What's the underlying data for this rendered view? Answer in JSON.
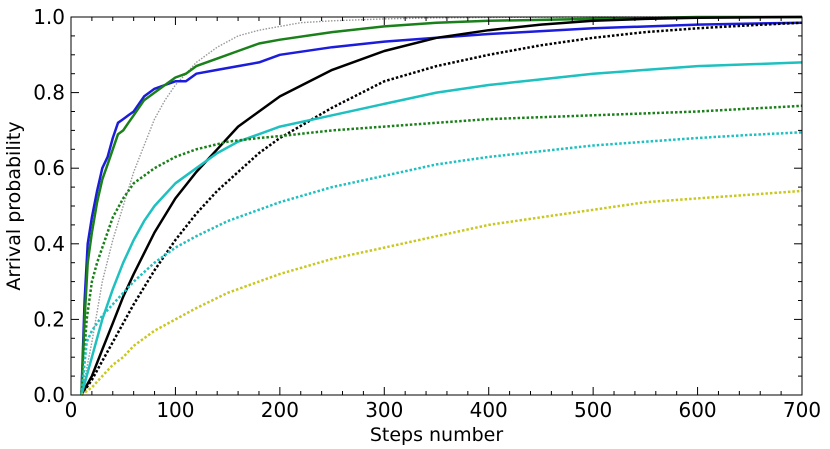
{
  "chart_data": {
    "type": "line",
    "title": "",
    "xlabel": "Steps number",
    "ylabel": "Arrival probability",
    "xlim": [
      0,
      700
    ],
    "ylim": [
      0,
      1
    ],
    "xticks": [
      0,
      100,
      200,
      300,
      400,
      500,
      600,
      700
    ],
    "xtick_labels": [
      "0",
      "100",
      "200",
      "300",
      "400",
      "500",
      "600",
      "700"
    ],
    "yticks": [
      0,
      0.2,
      0.4,
      0.6,
      0.8,
      1.0
    ],
    "ytick_labels": [
      "0.0",
      "0.2",
      "0.4",
      "0.6",
      "0.8",
      "1.0"
    ],
    "grid": false,
    "legend": "none",
    "series": [
      {
        "color": "#999999",
        "style": "dotted",
        "width": 1.4,
        "x": [
          10,
          20,
          30,
          40,
          50,
          60,
          70,
          80,
          90,
          100,
          110,
          120,
          140,
          160,
          180,
          200,
          220,
          250,
          300,
          350,
          400,
          500,
          600,
          700
        ],
        "y": [
          0,
          0.14,
          0.3,
          0.41,
          0.5,
          0.59,
          0.66,
          0.73,
          0.78,
          0.82,
          0.85,
          0.88,
          0.92,
          0.95,
          0.965,
          0.975,
          0.985,
          0.99,
          0.995,
          0.998,
          0.999,
          1.0,
          1.0,
          1.0
        ]
      },
      {
        "color": "#1c1cdc",
        "style": "solid",
        "width": 2.5,
        "x": [
          10,
          13,
          16,
          20,
          25,
          30,
          35,
          40,
          45,
          50,
          55,
          60,
          65,
          70,
          80,
          90,
          100,
          110,
          120,
          140,
          160,
          180,
          200,
          250,
          300,
          350,
          400,
          500,
          600,
          700
        ],
        "y": [
          0,
          0.25,
          0.4,
          0.47,
          0.54,
          0.6,
          0.63,
          0.68,
          0.72,
          0.73,
          0.74,
          0.75,
          0.77,
          0.79,
          0.81,
          0.82,
          0.83,
          0.83,
          0.85,
          0.86,
          0.87,
          0.88,
          0.9,
          0.92,
          0.935,
          0.945,
          0.955,
          0.97,
          0.98,
          0.985
        ]
      },
      {
        "color": "#1a801a",
        "style": "solid",
        "width": 2.5,
        "x": [
          10,
          13,
          16,
          20,
          25,
          30,
          35,
          40,
          45,
          50,
          55,
          60,
          65,
          70,
          80,
          90,
          100,
          110,
          120,
          140,
          160,
          180,
          200,
          250,
          300,
          350,
          400,
          500,
          600,
          700
        ],
        "y": [
          0,
          0.2,
          0.35,
          0.43,
          0.51,
          0.57,
          0.61,
          0.65,
          0.69,
          0.7,
          0.72,
          0.74,
          0.76,
          0.78,
          0.8,
          0.82,
          0.84,
          0.85,
          0.87,
          0.89,
          0.91,
          0.93,
          0.94,
          0.96,
          0.975,
          0.985,
          0.99,
          0.995,
          1.0,
          1.0
        ]
      },
      {
        "color": "#000000",
        "style": "solid",
        "width": 2.5,
        "x": [
          10,
          20,
          30,
          40,
          50,
          60,
          80,
          100,
          120,
          140,
          160,
          180,
          200,
          250,
          300,
          350,
          400,
          450,
          500,
          550,
          600,
          650,
          700
        ],
        "y": [
          0,
          0.05,
          0.12,
          0.19,
          0.26,
          0.32,
          0.43,
          0.52,
          0.59,
          0.65,
          0.71,
          0.75,
          0.79,
          0.86,
          0.91,
          0.945,
          0.965,
          0.98,
          0.99,
          0.995,
          0.998,
          0.999,
          1.0
        ]
      },
      {
        "color": "#000000",
        "style": "dotted",
        "width": 2.5,
        "x": [
          10,
          20,
          30,
          40,
          50,
          60,
          80,
          100,
          120,
          140,
          160,
          180,
          200,
          250,
          300,
          350,
          400,
          450,
          500,
          550,
          600,
          650,
          700
        ],
        "y": [
          0,
          0.04,
          0.09,
          0.14,
          0.19,
          0.24,
          0.33,
          0.41,
          0.48,
          0.54,
          0.59,
          0.64,
          0.68,
          0.76,
          0.83,
          0.87,
          0.9,
          0.925,
          0.945,
          0.96,
          0.97,
          0.978,
          0.985
        ]
      },
      {
        "color": "#1ec0c0",
        "style": "solid",
        "width": 2.5,
        "x": [
          10,
          20,
          30,
          40,
          50,
          60,
          70,
          80,
          100,
          120,
          140,
          160,
          180,
          200,
          250,
          300,
          350,
          400,
          450,
          500,
          550,
          600,
          650,
          700
        ],
        "y": [
          0,
          0.1,
          0.2,
          0.28,
          0.35,
          0.41,
          0.46,
          0.5,
          0.56,
          0.6,
          0.64,
          0.67,
          0.69,
          0.71,
          0.74,
          0.77,
          0.8,
          0.82,
          0.835,
          0.85,
          0.86,
          0.87,
          0.875,
          0.88
        ]
      },
      {
        "color": "#1a801a",
        "style": "dotted",
        "width": 2.5,
        "x": [
          10,
          15,
          20,
          25,
          30,
          40,
          50,
          60,
          80,
          100,
          120,
          150,
          180,
          200,
          250,
          300,
          350,
          400,
          500,
          600,
          700
        ],
        "y": [
          0,
          0.2,
          0.3,
          0.35,
          0.39,
          0.47,
          0.52,
          0.56,
          0.6,
          0.63,
          0.65,
          0.67,
          0.68,
          0.685,
          0.7,
          0.71,
          0.72,
          0.73,
          0.74,
          0.75,
          0.765
        ]
      },
      {
        "color": "#1ec0c0",
        "style": "dotted",
        "width": 2.5,
        "x": [
          10,
          15,
          20,
          30,
          40,
          50,
          60,
          80,
          100,
          120,
          150,
          200,
          250,
          300,
          350,
          400,
          450,
          500,
          550,
          600,
          650,
          700
        ],
        "y": [
          0,
          0.14,
          0.17,
          0.21,
          0.24,
          0.27,
          0.3,
          0.35,
          0.39,
          0.42,
          0.46,
          0.51,
          0.55,
          0.58,
          0.61,
          0.63,
          0.645,
          0.66,
          0.67,
          0.68,
          0.688,
          0.695
        ]
      },
      {
        "color": "#c8c81e",
        "style": "dotted",
        "width": 2.5,
        "x": [
          10,
          20,
          30,
          40,
          50,
          60,
          80,
          100,
          120,
          150,
          200,
          250,
          300,
          350,
          400,
          450,
          500,
          550,
          600,
          650,
          700
        ],
        "y": [
          0,
          0.02,
          0.05,
          0.08,
          0.1,
          0.13,
          0.17,
          0.2,
          0.23,
          0.27,
          0.32,
          0.36,
          0.39,
          0.42,
          0.45,
          0.47,
          0.49,
          0.51,
          0.52,
          0.53,
          0.54
        ]
      }
    ]
  }
}
